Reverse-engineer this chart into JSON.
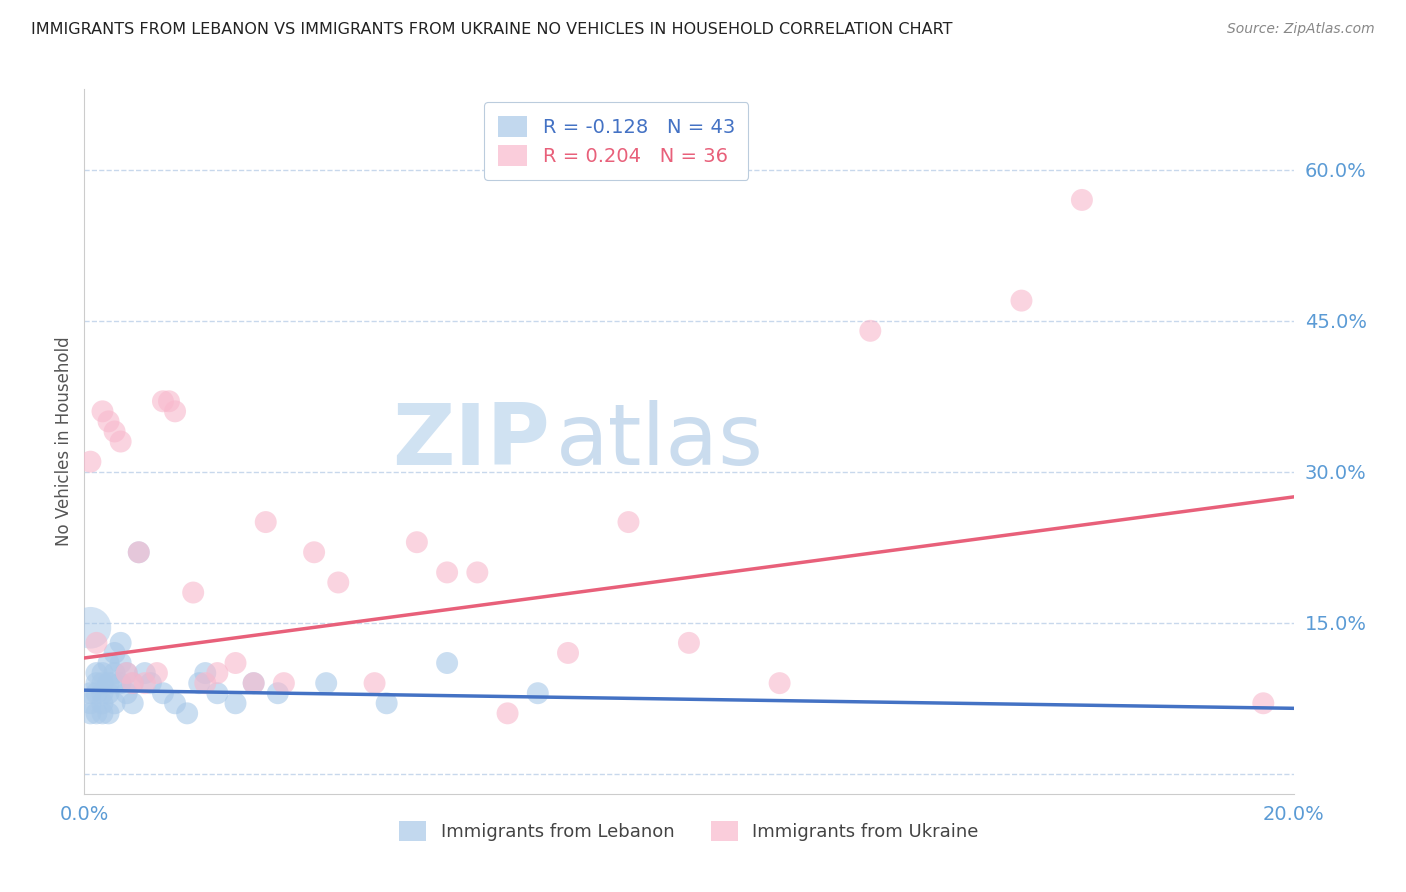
{
  "title": "IMMIGRANTS FROM LEBANON VS IMMIGRANTS FROM UKRAINE NO VEHICLES IN HOUSEHOLD CORRELATION CHART",
  "source": "Source: ZipAtlas.com",
  "ylabel": "No Vehicles in Household",
  "legend_entries": [
    {
      "label": "R = -0.128   N = 43"
    },
    {
      "label": "R = 0.204   N = 36"
    }
  ],
  "legend_labels": [
    "Immigrants from Lebanon",
    "Immigrants from Ukraine"
  ],
  "xlim": [
    0.0,
    0.2
  ],
  "ylim": [
    -0.02,
    0.68
  ],
  "right_yticks": [
    0.0,
    0.15,
    0.3,
    0.45,
    0.6
  ],
  "right_ytick_labels": [
    "",
    "15.0%",
    "30.0%",
    "45.0%",
    "60.0%"
  ],
  "xticks": [
    0.0,
    0.05,
    0.1,
    0.15,
    0.2
  ],
  "xtick_labels": [
    "0.0%",
    "",
    "",
    "",
    "20.0%"
  ],
  "tick_color": "#5b9bd5",
  "grid_color": "#c8d8ec",
  "blue_color": "#a8c8e8",
  "pink_color": "#f8b8cc",
  "blue_line_color": "#4472c4",
  "pink_line_color": "#e8607a",
  "watermark_zip": "ZIP",
  "watermark_atlas": "atlas",
  "lebanon_x": [
    0.001,
    0.001,
    0.001,
    0.002,
    0.002,
    0.002,
    0.002,
    0.003,
    0.003,
    0.003,
    0.003,
    0.003,
    0.004,
    0.004,
    0.004,
    0.004,
    0.005,
    0.005,
    0.005,
    0.005,
    0.006,
    0.006,
    0.006,
    0.007,
    0.007,
    0.008,
    0.008,
    0.009,
    0.01,
    0.011,
    0.013,
    0.015,
    0.017,
    0.019,
    0.02,
    0.022,
    0.025,
    0.028,
    0.032,
    0.04,
    0.05,
    0.06,
    0.075
  ],
  "lebanon_y": [
    0.08,
    0.07,
    0.06,
    0.1,
    0.09,
    0.08,
    0.06,
    0.1,
    0.09,
    0.08,
    0.07,
    0.06,
    0.11,
    0.09,
    0.08,
    0.06,
    0.12,
    0.1,
    0.09,
    0.07,
    0.13,
    0.11,
    0.09,
    0.1,
    0.08,
    0.09,
    0.07,
    0.22,
    0.1,
    0.09,
    0.08,
    0.07,
    0.06,
    0.09,
    0.1,
    0.08,
    0.07,
    0.09,
    0.08,
    0.09,
    0.07,
    0.11,
    0.08
  ],
  "ukraine_x": [
    0.001,
    0.002,
    0.003,
    0.004,
    0.005,
    0.006,
    0.007,
    0.008,
    0.009,
    0.01,
    0.012,
    0.013,
    0.014,
    0.015,
    0.018,
    0.02,
    0.022,
    0.025,
    0.028,
    0.03,
    0.033,
    0.038,
    0.042,
    0.048,
    0.055,
    0.06,
    0.065,
    0.07,
    0.08,
    0.09,
    0.1,
    0.115,
    0.13,
    0.155,
    0.165,
    0.195
  ],
  "ukraine_y": [
    0.31,
    0.13,
    0.36,
    0.35,
    0.34,
    0.33,
    0.1,
    0.09,
    0.22,
    0.09,
    0.1,
    0.37,
    0.37,
    0.36,
    0.18,
    0.09,
    0.1,
    0.11,
    0.09,
    0.25,
    0.09,
    0.22,
    0.19,
    0.09,
    0.23,
    0.2,
    0.2,
    0.06,
    0.12,
    0.25,
    0.13,
    0.09,
    0.44,
    0.47,
    0.57,
    0.07
  ],
  "leb_large_x": [
    0.001
  ],
  "leb_large_y": [
    0.145
  ]
}
